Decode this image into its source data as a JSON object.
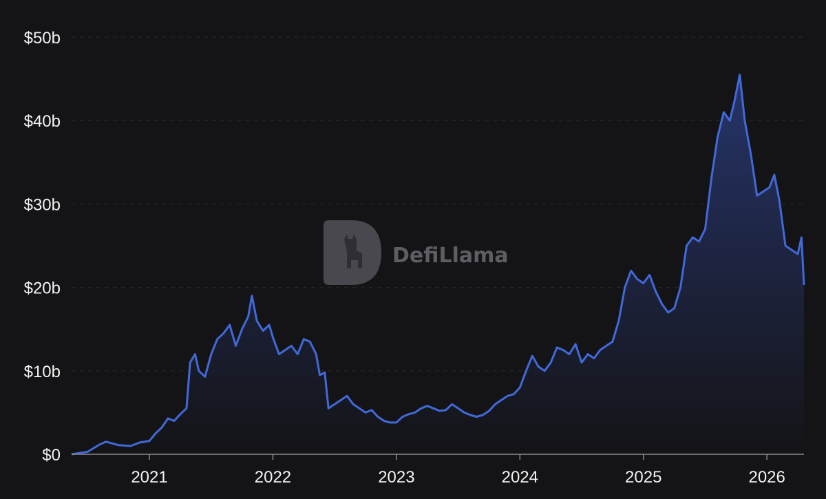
{
  "chart_data": {
    "type": "area",
    "title": "",
    "xlabel": "",
    "ylabel": "",
    "y_tick_labels": [
      "$0",
      "$10b",
      "$20b",
      "$30b",
      "$40b",
      "$50b"
    ],
    "y_tick_values": [
      0,
      10,
      20,
      30,
      40,
      50
    ],
    "x_tick_labels": [
      "2021",
      "2022",
      "2023",
      "2024",
      "2025",
      "2026"
    ],
    "x_tick_values": [
      2021,
      2022,
      2023,
      2024,
      2025,
      2026
    ],
    "xlim": [
      2020.37,
      2026.3
    ],
    "ylim": [
      0,
      50
    ],
    "grid": "horizontal dashed",
    "series": [
      {
        "unit": "USD billions",
        "color": "#4169d8",
        "x": [
          2020.37,
          2020.5,
          2020.6,
          2020.65,
          2020.75,
          2020.85,
          2020.92,
          2021.0,
          2021.05,
          2021.1,
          2021.15,
          2021.2,
          2021.25,
          2021.3,
          2021.33,
          2021.37,
          2021.4,
          2021.45,
          2021.5,
          2021.55,
          2021.6,
          2021.65,
          2021.7,
          2021.75,
          2021.8,
          2021.83,
          2021.87,
          2021.92,
          2021.97,
          2022.0,
          2022.05,
          2022.1,
          2022.15,
          2022.2,
          2022.25,
          2022.3,
          2022.35,
          2022.38,
          2022.42,
          2022.45,
          2022.5,
          2022.55,
          2022.6,
          2022.65,
          2022.7,
          2022.75,
          2022.8,
          2022.85,
          2022.9,
          2022.95,
          2023.0,
          2023.05,
          2023.1,
          2023.15,
          2023.2,
          2023.25,
          2023.3,
          2023.35,
          2023.4,
          2023.45,
          2023.5,
          2023.55,
          2023.6,
          2023.65,
          2023.7,
          2023.75,
          2023.8,
          2023.85,
          2023.9,
          2023.95,
          2024.0,
          2024.05,
          2024.1,
          2024.15,
          2024.2,
          2024.25,
          2024.3,
          2024.35,
          2024.4,
          2024.45,
          2024.5,
          2024.55,
          2024.6,
          2024.65,
          2024.7,
          2024.75,
          2024.8,
          2024.85,
          2024.9,
          2024.95,
          2025.0,
          2025.05,
          2025.1,
          2025.15,
          2025.2,
          2025.25,
          2025.3,
          2025.35,
          2025.4,
          2025.45,
          2025.5,
          2025.55,
          2025.6,
          2025.65,
          2025.7,
          2025.74,
          2025.78,
          2025.82,
          2025.87,
          2025.92,
          2025.97,
          2026.02,
          2026.06,
          2026.1,
          2026.15,
          2026.2,
          2026.25,
          2026.28,
          2026.3
        ],
        "values": [
          0.0,
          0.3,
          1.2,
          1.5,
          1.1,
          1.0,
          1.4,
          1.6,
          2.5,
          3.2,
          4.3,
          4.0,
          4.8,
          5.5,
          11.0,
          12.0,
          10.0,
          9.3,
          12.0,
          13.8,
          14.5,
          15.5,
          13.0,
          15.0,
          16.5,
          19.0,
          16.0,
          14.8,
          15.5,
          14.0,
          12.0,
          12.5,
          13.0,
          12.0,
          13.8,
          13.5,
          12.0,
          9.5,
          9.8,
          5.5,
          6.0,
          6.5,
          7.0,
          6.0,
          5.5,
          5.0,
          5.3,
          4.5,
          4.0,
          3.8,
          3.8,
          4.5,
          4.8,
          5.0,
          5.5,
          5.8,
          5.5,
          5.2,
          5.3,
          6.0,
          5.5,
          5.0,
          4.7,
          4.5,
          4.7,
          5.2,
          6.0,
          6.5,
          7.0,
          7.2,
          8.0,
          10.0,
          11.8,
          10.5,
          10.0,
          11.0,
          12.8,
          12.5,
          12.0,
          13.2,
          11.0,
          12.0,
          11.5,
          12.5,
          13.0,
          13.5,
          16.0,
          20.0,
          22.0,
          21.0,
          20.5,
          21.5,
          19.5,
          18.0,
          17.0,
          17.5,
          20.0,
          25.0,
          26.0,
          25.5,
          27.0,
          33.0,
          38.0,
          41.0,
          40.0,
          42.5,
          45.5,
          40.0,
          36.0,
          31.0,
          31.5,
          32.0,
          33.5,
          30.5,
          25.0,
          24.5,
          24.0,
          26.0,
          20.3
        ]
      }
    ]
  },
  "watermark": {
    "text": "DefiLlama"
  },
  "colors": {
    "background": "#141417",
    "line": "#4169d8",
    "fill_top": "#27366e",
    "fill_bottom": "#141417"
  }
}
